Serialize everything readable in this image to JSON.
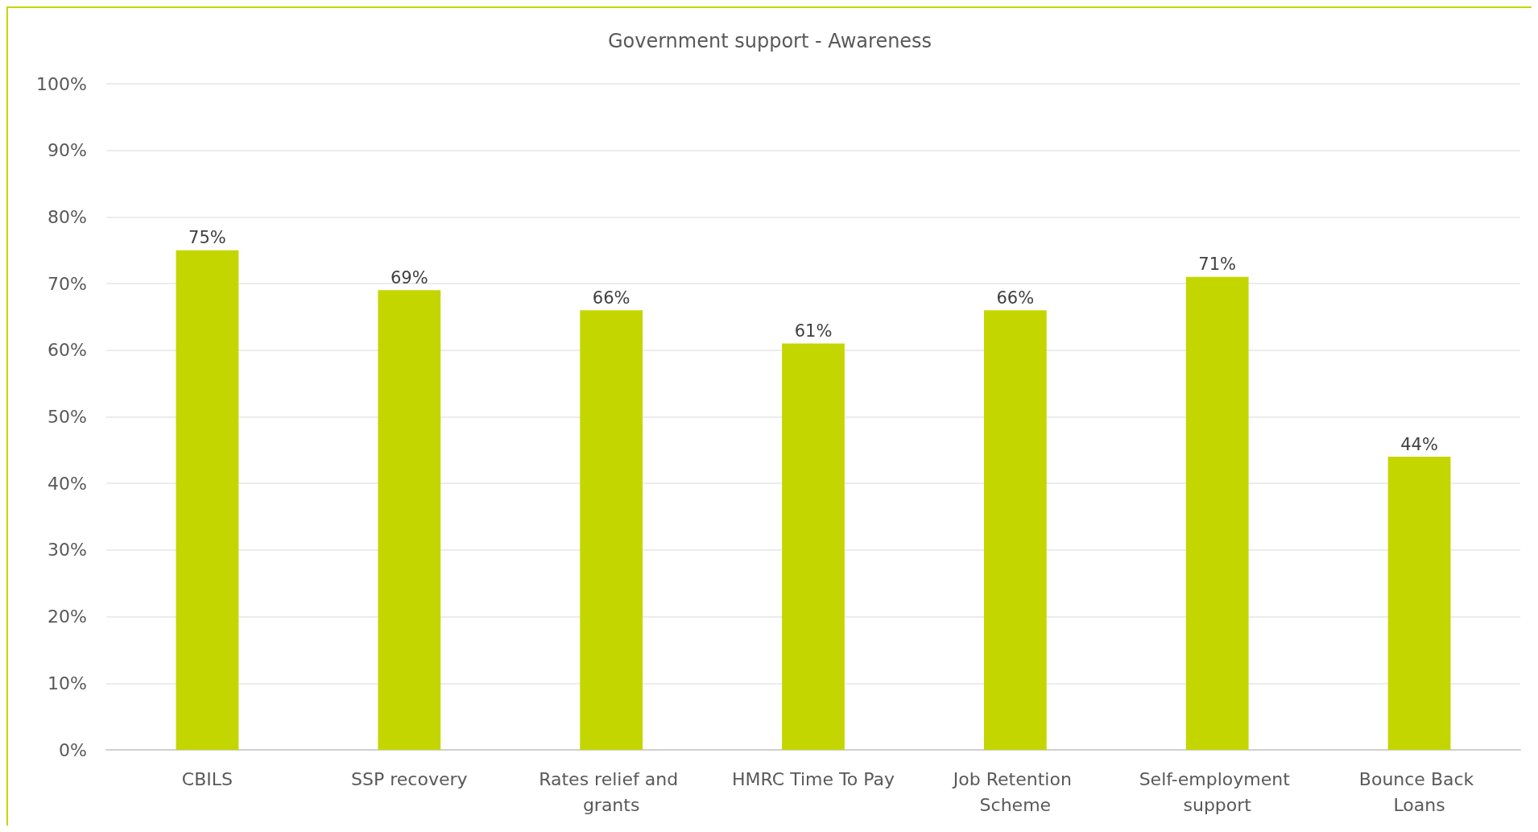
{
  "chart_data": {
    "type": "bar",
    "title": "Government support - Awareness",
    "categories": [
      "CBILS",
      "SSP recovery",
      "Rates relief and grants",
      "HMRC Time To Pay",
      "Job Retention Scheme",
      "Self-employment support",
      "Bounce Back Loans"
    ],
    "values": [
      75,
      69,
      66,
      61,
      66,
      71,
      44
    ],
    "value_labels": [
      "75%",
      "69%",
      "66%",
      "61%",
      "66%",
      "71%",
      "44%"
    ],
    "color": "#c4d600",
    "ylim": [
      0,
      100
    ],
    "yticks": [
      {
        "value": 0,
        "label": "0%"
      },
      {
        "value": 10,
        "label": "10%"
      },
      {
        "value": 20,
        "label": "20%"
      },
      {
        "value": 30,
        "label": "30%"
      },
      {
        "value": 40,
        "label": "40%"
      },
      {
        "value": 50,
        "label": "50%"
      },
      {
        "value": 60,
        "label": "60%"
      },
      {
        "value": 70,
        "label": "70%"
      },
      {
        "value": 80,
        "label": "80%"
      },
      {
        "value": 90,
        "label": "90%"
      },
      {
        "value": 100,
        "label": "100%"
      }
    ],
    "grid": "y"
  }
}
